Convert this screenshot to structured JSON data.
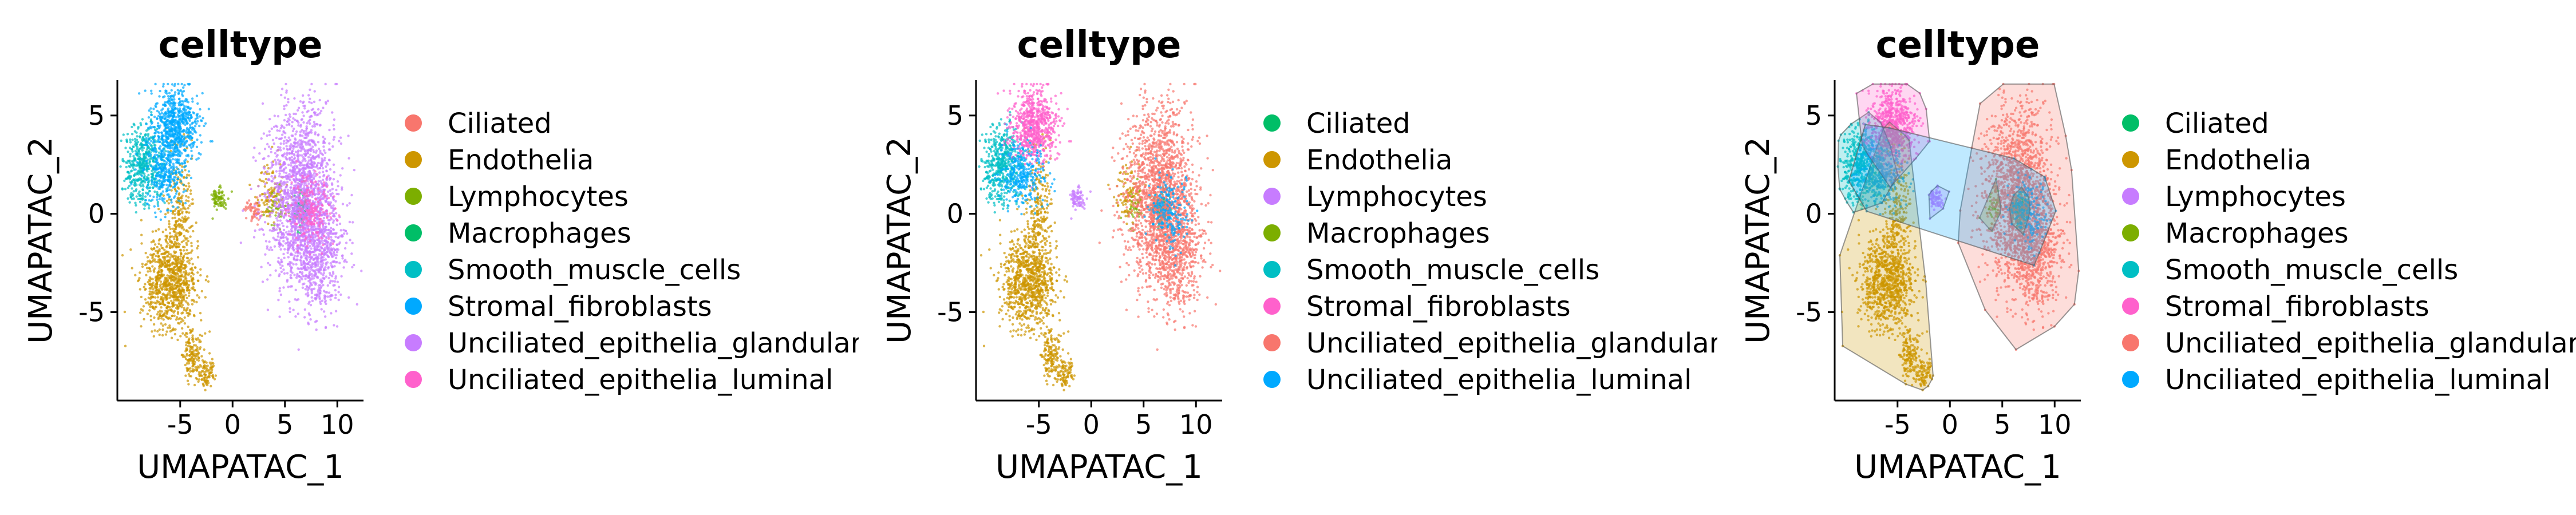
{
  "chart_data": [
    {
      "type": "scatter",
      "title": "celltype",
      "xlabel": "UMAPATAC_1",
      "ylabel": "UMAPATAC_2",
      "xlim": [
        -11,
        12.5
      ],
      "ylim": [
        -9.5,
        6.8
      ],
      "xticks": [
        -5,
        0,
        5,
        10
      ],
      "yticks": [
        -5,
        0,
        5
      ],
      "xtick_labels": [
        "-5",
        "0",
        "5",
        "10"
      ],
      "ytick_labels": [
        "-5",
        "0",
        "5"
      ],
      "grid": false,
      "legend_position": "right",
      "series": [
        {
          "name": "Ciliated",
          "color": "#F8766D",
          "clusters": [
            {
              "x": 2.0,
              "y": 0.2,
              "sx": 0.4,
              "sy": 0.3,
              "n": 60
            }
          ]
        },
        {
          "name": "Endothelia",
          "color": "#CD9600",
          "clusters": [
            {
              "x": -6.0,
              "y": -3.5,
              "sx": 1.3,
              "sy": 1.2,
              "n": 900
            },
            {
              "x": -5.0,
              "y": 0.5,
              "sx": 0.6,
              "sy": 1.5,
              "n": 200
            },
            {
              "x": -3.8,
              "y": -7.2,
              "sx": 0.5,
              "sy": 0.6,
              "n": 150
            },
            {
              "x": -2.5,
              "y": -8.1,
              "sx": 0.4,
              "sy": 0.4,
              "n": 80
            },
            {
              "x": 3.5,
              "y": 1.0,
              "sx": 0.7,
              "sy": 0.7,
              "n": 100
            }
          ]
        },
        {
          "name": "Lymphocytes",
          "color": "#7CAE00",
          "clusters": [
            {
              "x": -1.3,
              "y": 0.8,
              "sx": 0.4,
              "sy": 0.3,
              "n": 80
            },
            {
              "x": 4.2,
              "y": 0.3,
              "sx": 0.5,
              "sy": 0.5,
              "n": 40
            }
          ]
        },
        {
          "name": "Macrophages",
          "color": "#00BE67",
          "clusters": [
            {
              "x": 6.6,
              "y": 0.2,
              "sx": 0.4,
              "sy": 0.5,
              "n": 90
            }
          ]
        },
        {
          "name": "Smooth_muscle_cells",
          "color": "#00BFC4",
          "clusters": [
            {
              "x": -8.5,
              "y": 2.5,
              "sx": 0.9,
              "sy": 1.0,
              "n": 500
            }
          ]
        },
        {
          "name": "Stromal_fibroblasts",
          "color": "#00A9FF",
          "clusters": [
            {
              "x": -5.5,
              "y": 4.5,
              "sx": 1.1,
              "sy": 0.9,
              "n": 700
            },
            {
              "x": -6.5,
              "y": 2.0,
              "sx": 1.0,
              "sy": 0.8,
              "n": 300
            }
          ]
        },
        {
          "name": "Unciliated_epithelia_glandular",
          "color": "#C77CFF",
          "clusters": [
            {
              "x": 6.5,
              "y": 1.0,
              "sx": 1.6,
              "sy": 2.2,
              "n": 1600
            },
            {
              "x": 8.0,
              "y": -2.0,
              "sx": 1.4,
              "sy": 1.5,
              "n": 600
            }
          ]
        },
        {
          "name": "Unciliated_epithelia_luminal",
          "color": "#FF61CC",
          "clusters": [
            {
              "x": 7.5,
              "y": 0.2,
              "sx": 0.9,
              "sy": 0.9,
              "n": 200
            }
          ]
        }
      ]
    },
    {
      "type": "scatter",
      "title": "celltype",
      "xlabel": "UMAPATAC_1",
      "ylabel": "UMAPATAC_2",
      "xlim": [
        -11,
        12.5
      ],
      "ylim": [
        -9.5,
        6.8
      ],
      "xticks": [
        -5,
        0,
        5,
        10
      ],
      "yticks": [
        -5,
        0,
        5
      ],
      "xtick_labels": [
        "-5",
        "0",
        "5",
        "10"
      ],
      "ytick_labels": [
        "-5",
        "0",
        "5"
      ],
      "grid": false,
      "legend_position": "right",
      "series": [
        {
          "name": "Ciliated",
          "color": "#00BE67",
          "clusters": [
            {
              "x": 6.6,
              "y": 0.2,
              "sx": 0.4,
              "sy": 0.5,
              "n": 90
            }
          ]
        },
        {
          "name": "Endothelia",
          "color": "#CD9600",
          "clusters": [
            {
              "x": -6.0,
              "y": -3.5,
              "sx": 1.3,
              "sy": 1.2,
              "n": 900
            },
            {
              "x": -5.0,
              "y": 0.5,
              "sx": 0.6,
              "sy": 1.5,
              "n": 200
            },
            {
              "x": -3.8,
              "y": -7.2,
              "sx": 0.5,
              "sy": 0.6,
              "n": 150
            },
            {
              "x": -2.5,
              "y": -8.1,
              "sx": 0.4,
              "sy": 0.4,
              "n": 80
            },
            {
              "x": 3.5,
              "y": 1.0,
              "sx": 0.7,
              "sy": 0.7,
              "n": 100
            }
          ]
        },
        {
          "name": "Lymphocytes",
          "color": "#C77CFF",
          "clusters": [
            {
              "x": -1.3,
              "y": 0.8,
              "sx": 0.4,
              "sy": 0.3,
              "n": 80
            }
          ]
        },
        {
          "name": "Macrophages",
          "color": "#7CAE00",
          "clusters": [
            {
              "x": 4.2,
              "y": 0.3,
              "sx": 0.5,
              "sy": 0.5,
              "n": 40
            }
          ]
        },
        {
          "name": "Smooth_muscle_cells",
          "color": "#00BFC4",
          "clusters": [
            {
              "x": -8.5,
              "y": 2.5,
              "sx": 0.9,
              "sy": 1.0,
              "n": 500
            }
          ]
        },
        {
          "name": "Stromal_fibroblasts",
          "color": "#FF61CC",
          "clusters": [
            {
              "x": -5.5,
              "y": 4.5,
              "sx": 1.1,
              "sy": 0.9,
              "n": 700
            }
          ]
        },
        {
          "name": "Unciliated_epithelia_glandular",
          "color": "#F8766D",
          "clusters": [
            {
              "x": 6.5,
              "y": 1.0,
              "sx": 1.6,
              "sy": 2.2,
              "n": 1600
            },
            {
              "x": 8.0,
              "y": -2.0,
              "sx": 1.4,
              "sy": 1.5,
              "n": 600
            }
          ]
        },
        {
          "name": "Unciliated_epithelia_luminal",
          "color": "#00A9FF",
          "clusters": [
            {
              "x": -6.5,
              "y": 2.0,
              "sx": 1.0,
              "sy": 0.8,
              "n": 300
            },
            {
              "x": 7.5,
              "y": 0.2,
              "sx": 0.9,
              "sy": 0.9,
              "n": 200
            }
          ]
        }
      ]
    },
    {
      "type": "scatter",
      "title": "celltype",
      "xlabel": "UMAPATAC_1",
      "ylabel": "UMAPATAC_2",
      "xlim": [
        -11,
        12.5
      ],
      "ylim": [
        -9.5,
        6.8
      ],
      "xticks": [
        -5,
        0,
        5,
        10
      ],
      "yticks": [
        -5,
        0,
        5
      ],
      "xtick_labels": [
        "-5",
        "0",
        "5",
        "10"
      ],
      "ytick_labels": [
        "-5",
        "0",
        "5"
      ],
      "grid": false,
      "legend_position": "right",
      "hulls": true,
      "series": [
        {
          "name": "Ciliated",
          "color": "#00BE67",
          "clusters": [
            {
              "x": 6.6,
              "y": 0.2,
              "sx": 0.4,
              "sy": 0.5,
              "n": 90
            }
          ]
        },
        {
          "name": "Endothelia",
          "color": "#CD9600",
          "clusters": [
            {
              "x": -6.0,
              "y": -3.5,
              "sx": 1.3,
              "sy": 1.2,
              "n": 900
            },
            {
              "x": -5.0,
              "y": 0.5,
              "sx": 0.6,
              "sy": 1.5,
              "n": 200
            },
            {
              "x": -3.8,
              "y": -7.2,
              "sx": 0.5,
              "sy": 0.6,
              "n": 150
            },
            {
              "x": -2.5,
              "y": -8.1,
              "sx": 0.4,
              "sy": 0.4,
              "n": 80
            }
          ]
        },
        {
          "name": "Lymphocytes",
          "color": "#C77CFF",
          "clusters": [
            {
              "x": -1.3,
              "y": 0.8,
              "sx": 0.4,
              "sy": 0.3,
              "n": 80
            }
          ]
        },
        {
          "name": "Macrophages",
          "color": "#7CAE00",
          "clusters": [
            {
              "x": 4.2,
              "y": 0.3,
              "sx": 0.5,
              "sy": 0.5,
              "n": 40
            }
          ]
        },
        {
          "name": "Smooth_muscle_cells",
          "color": "#00BFC4",
          "clusters": [
            {
              "x": -8.5,
              "y": 2.5,
              "sx": 0.9,
              "sy": 1.0,
              "n": 500
            }
          ]
        },
        {
          "name": "Stromal_fibroblasts",
          "color": "#FF61CC",
          "clusters": [
            {
              "x": -5.5,
              "y": 4.5,
              "sx": 1.1,
              "sy": 0.9,
              "n": 700
            }
          ]
        },
        {
          "name": "Unciliated_epithelia_glandular",
          "color": "#F8766D",
          "clusters": [
            {
              "x": 6.5,
              "y": 1.0,
              "sx": 1.6,
              "sy": 2.2,
              "n": 1600
            },
            {
              "x": 8.0,
              "y": -2.0,
              "sx": 1.4,
              "sy": 1.5,
              "n": 600
            }
          ]
        },
        {
          "name": "Unciliated_epithelia_luminal",
          "color": "#00A9FF",
          "clusters": [
            {
              "x": -6.5,
              "y": 2.0,
              "sx": 1.0,
              "sy": 0.8,
              "n": 300
            },
            {
              "x": 7.5,
              "y": 0.2,
              "sx": 0.9,
              "sy": 0.9,
              "n": 200
            }
          ]
        }
      ]
    }
  ]
}
